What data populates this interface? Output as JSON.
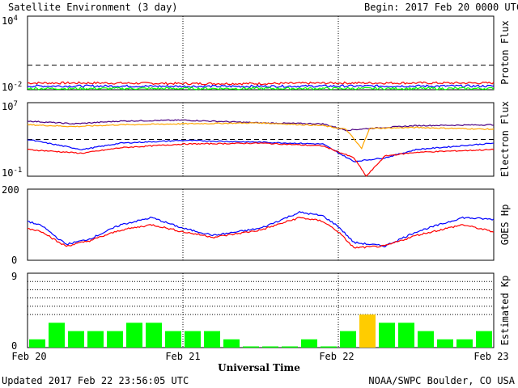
{
  "header": {
    "title": "Satellite Environment (3 day)",
    "begin": "Begin:  2017 Feb 20 0000 UTC"
  },
  "footer": {
    "updated": "Updated 2017 Feb 22 23:56:05 UTC",
    "source": "NOAA/SWPC Boulder, CO USA",
    "xlabel": "Universal Time"
  },
  "x_ticks": [
    "Feb 20",
    "Feb 21",
    "Feb 22",
    "Feb 23"
  ],
  "colors": {
    "red": "#ff0000",
    "blue": "#0000ff",
    "green": "#00ff00",
    "orange": "#ffa500",
    "purple": "#4b0082",
    "kp_normal": "#00ff00",
    "kp_elevated": "#ffcc00"
  },
  "chart_data": [
    {
      "type": "line",
      "panel": "proton",
      "ylabel": "Proton Flux",
      "ytick_labels": {
        "top": "10",
        "top_exp": "4",
        "bottom": "10",
        "bottom_exp": "-2"
      },
      "ylim_log10": [
        -2,
        4
      ],
      "y_scale": "log",
      "reference_line_log10": 0,
      "x_range_days": [
        0,
        3
      ],
      "series": [
        {
          "color": "red",
          "x": [
            0,
            0.5,
            1,
            1.5,
            2,
            2.5,
            3
          ],
          "log10_values": [
            -1.45,
            -1.45,
            -1.5,
            -1.5,
            -1.45,
            -1.45,
            -1.45
          ]
        },
        {
          "color": "blue",
          "x": [
            0,
            0.5,
            1,
            1.5,
            2,
            2.5,
            3
          ],
          "log10_values": [
            -1.7,
            -1.7,
            -1.72,
            -1.72,
            -1.7,
            -1.7,
            -1.7
          ]
        },
        {
          "color": "green",
          "x": [
            0,
            0.5,
            1,
            1.5,
            2,
            2.5,
            3
          ],
          "log10_values": [
            -1.9,
            -1.9,
            -1.9,
            -1.9,
            -1.9,
            -1.9,
            -1.9
          ]
        }
      ]
    },
    {
      "type": "line",
      "panel": "electron",
      "ylabel": "Electron Flux",
      "ytick_labels": {
        "top": "10",
        "top_exp": "7",
        "bottom": "10",
        "bottom_exp": "-1"
      },
      "ylim_log10": [
        -1,
        7
      ],
      "y_scale": "log",
      "reference_line_log10": 3,
      "x_range_days": [
        0,
        3
      ],
      "series": [
        {
          "color": "purple",
          "x": [
            0,
            0.3,
            0.6,
            1.0,
            1.5,
            1.9,
            2.05,
            2.2,
            2.5,
            3.0
          ],
          "log10_values": [
            5.0,
            4.7,
            5.0,
            5.1,
            4.8,
            4.7,
            4.0,
            4.2,
            4.5,
            4.6
          ]
        },
        {
          "color": "orange",
          "x": [
            0,
            0.3,
            0.6,
            1.0,
            1.5,
            1.9,
            2.05,
            2.15,
            2.2,
            2.5,
            3.0
          ],
          "log10_values": [
            4.6,
            4.4,
            4.6,
            4.7,
            4.8,
            4.5,
            4.1,
            2.0,
            4.2,
            4.3,
            4.1
          ]
        },
        {
          "color": "blue",
          "x": [
            0,
            0.35,
            0.6,
            1.0,
            1.5,
            1.9,
            2.1,
            2.3,
            2.5,
            3.0
          ],
          "log10_values": [
            3.0,
            1.9,
            2.6,
            2.9,
            2.7,
            2.5,
            0.6,
            1.0,
            1.9,
            2.6
          ]
        },
        {
          "color": "red",
          "x": [
            0,
            0.35,
            0.6,
            1.0,
            1.5,
            1.9,
            2.1,
            2.18,
            2.3,
            2.5,
            3.0
          ],
          "log10_values": [
            1.9,
            1.5,
            2.1,
            2.5,
            2.6,
            2.3,
            1.0,
            -1.0,
            1.2,
            1.6,
            1.9
          ]
        }
      ]
    },
    {
      "type": "line",
      "panel": "goes_hp",
      "ylabel": "GOES Hp",
      "ytick_labels": {
        "top": "200",
        "bottom": "0"
      },
      "ylim": [
        0,
        200
      ],
      "x_range_days": [
        0,
        3
      ],
      "series": [
        {
          "color": "blue",
          "x": [
            0,
            0.1,
            0.2,
            0.25,
            0.4,
            0.6,
            0.8,
            1.0,
            1.2,
            1.5,
            1.75,
            1.9,
            2.0,
            2.1,
            2.3,
            2.5,
            2.8,
            3.0
          ],
          "values": [
            110,
            95,
            60,
            45,
            60,
            100,
            120,
            90,
            70,
            90,
            135,
            125,
            95,
            50,
            40,
            80,
            120,
            115
          ]
        },
        {
          "color": "red",
          "x": [
            0,
            0.1,
            0.2,
            0.25,
            0.4,
            0.6,
            0.8,
            1.0,
            1.2,
            1.5,
            1.75,
            1.9,
            2.0,
            2.1,
            2.3,
            2.5,
            2.8,
            3.0
          ],
          "values": [
            90,
            80,
            50,
            40,
            55,
            85,
            100,
            80,
            65,
            85,
            120,
            110,
            80,
            35,
            40,
            70,
            100,
            80
          ]
        }
      ]
    },
    {
      "type": "bar",
      "panel": "kp",
      "ylabel": "Estimated Kp",
      "ytick_labels": {
        "top": "9",
        "bottom": "0"
      },
      "ylim": [
        0,
        9
      ],
      "bar_width_hours": 3,
      "values": [
        1,
        3,
        2,
        2,
        2,
        3,
        3,
        2,
        2,
        2,
        1,
        0,
        0,
        0,
        1,
        0,
        2,
        4,
        3,
        3,
        2,
        1,
        1,
        2
      ],
      "highlight_threshold": 4
    }
  ]
}
